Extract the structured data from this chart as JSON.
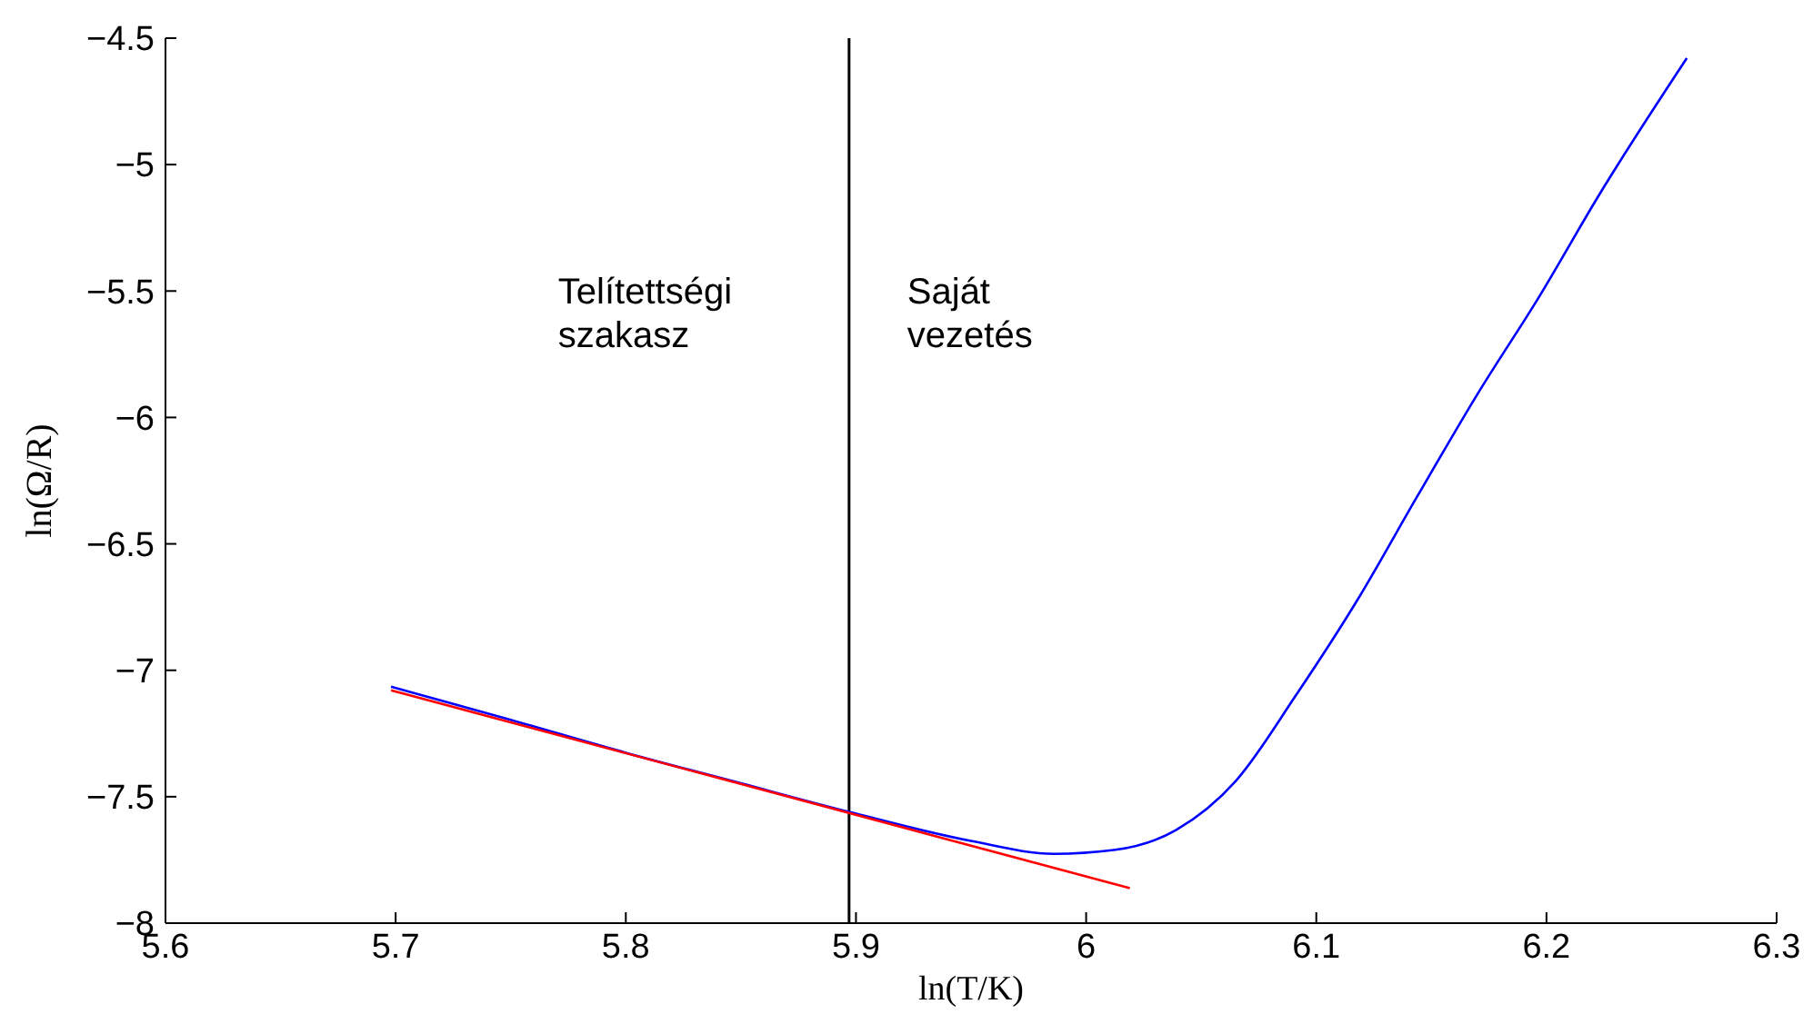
{
  "chart_data": {
    "type": "line",
    "xlabel": "ln(T/K)",
    "ylabel": "ln(Ω/R)",
    "annotations": [
      "Telítettségi\nszakasz",
      "Saját\nvezetés"
    ],
    "series": [
      {
        "color": "#0000ff",
        "x": [
          5.698,
          5.75,
          5.8,
          5.85,
          5.897,
          5.95,
          5.986,
          6.012,
          6.039,
          6.065,
          6.091,
          6.118,
          6.144,
          6.17,
          6.197,
          6.223,
          6.261
        ],
        "values": [
          -7.065,
          -7.196,
          -7.326,
          -7.447,
          -7.56,
          -7.675,
          -7.726,
          -7.711,
          -7.632,
          -7.438,
          -7.101,
          -6.72,
          -6.31,
          -5.908,
          -5.52,
          -5.118,
          -4.579
        ]
      },
      {
        "color": "#ff0000",
        "x": [
          5.698,
          6.019
        ],
        "values": [
          -7.079,
          -7.862
        ]
      }
    ],
    "ref_lines": [
      {
        "axis": "x",
        "value": 5.897,
        "color": "#000000"
      }
    ],
    "xlim": [
      5.6,
      6.3
    ],
    "xticks": [
      5.6,
      5.7,
      5.8,
      5.9,
      6,
      6.1,
      6.2,
      6.3
    ],
    "ylim": [
      -8,
      -4.5
    ],
    "yticks": [
      -8,
      -7.5,
      -7,
      -6.5,
      -6,
      -5.5,
      -5,
      -4.5
    ],
    "grid": false
  }
}
